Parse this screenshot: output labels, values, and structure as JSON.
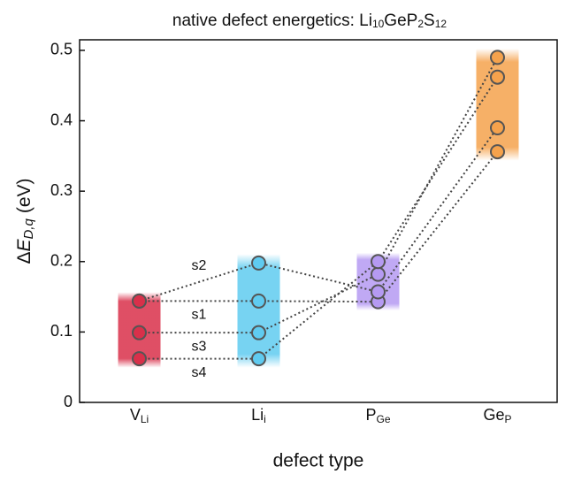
{
  "chart_data": {
    "type": "line",
    "title": [
      "native defect energetics: Li",
      "10",
      "Ge",
      "P",
      "2",
      "S",
      "12"
    ],
    "ylabel": [
      "Δ",
      "E",
      "D,q",
      "(eV)"
    ],
    "xlabel": "defect type",
    "categories": [
      "V",
      "Li",
      "P",
      "Ge"
    ],
    "category_subscripts": [
      "Li",
      "i",
      "Ge",
      "P"
    ],
    "category_colors": [
      "#d9304a",
      "#5fcbf0",
      "#b59af2",
      "#f5a24c"
    ],
    "series": [
      {
        "name": "s1",
        "values": [
          0.144,
          0.144,
          0.143,
          0.356
        ]
      },
      {
        "name": "s2",
        "values": [
          0.144,
          0.198,
          0.157,
          0.39
        ]
      },
      {
        "name": "s3",
        "values": [
          0.099,
          0.099,
          0.182,
          0.49
        ]
      },
      {
        "name": "s4",
        "values": [
          0.062,
          0.062,
          0.2,
          0.462
        ]
      }
    ],
    "ylim": [
      0,
      0.515
    ],
    "yticks": [
      0,
      0.1,
      0.2,
      0.3,
      0.4,
      0.5
    ]
  }
}
